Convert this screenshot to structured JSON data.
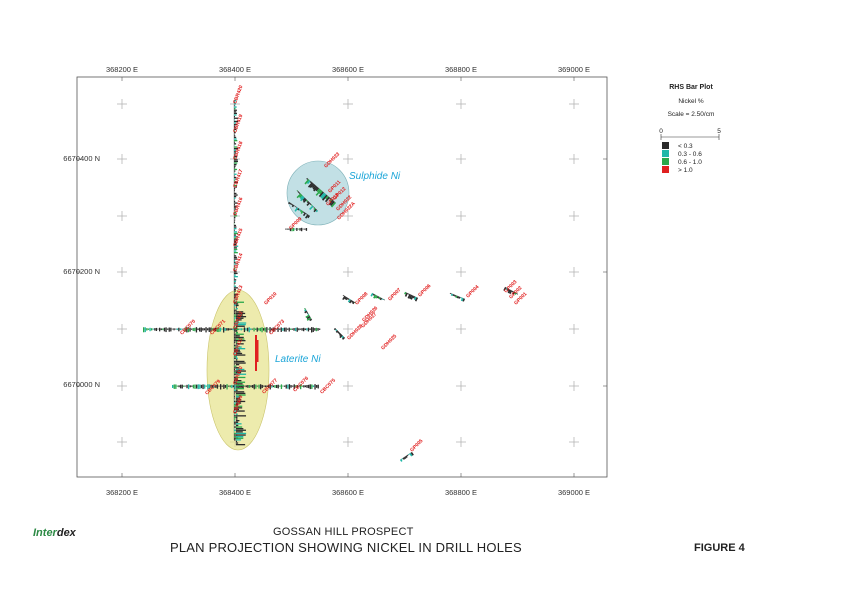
{
  "map": {
    "x_ticks": [
      "368200 E",
      "368400 E",
      "368600 E",
      "368800 E",
      "369000 E"
    ],
    "y_ticks": [
      "6670400 N",
      "6670200 N",
      "6670000 N"
    ],
    "zones": [
      {
        "name": "Sulphide Ni",
        "color": "#8fc7cf"
      },
      {
        "name": "Laterite Ni",
        "color": "#e6e28a"
      }
    ],
    "vertical_hole_labels": [
      "CBR420",
      "CBR419",
      "CBR418",
      "CBR417",
      "CBR416",
      "CBR415",
      "CBR414",
      "CBR413",
      "CBR412",
      "CBR411",
      "CBR410",
      "CBR409"
    ],
    "hole_labels": [
      "GDH023",
      "GP011",
      "GP012",
      "GP013",
      "GDH022",
      "GDH022A",
      "GP009",
      "GP010",
      "CBC070",
      "CBC071",
      "CBC073",
      "GP008",
      "GP007",
      "GP006",
      "GP004",
      "GP003",
      "GP002",
      "GP001",
      "GDH026",
      "GDH027",
      "GDH028",
      "GDH025",
      "CBC079",
      "CBC077",
      "CBC076",
      "CBC075",
      "GP005"
    ]
  },
  "legend": {
    "title": "RHS Bar Plot",
    "subtitle": "Nickel %",
    "scale": "Scale = 2.50/cm",
    "axis_min": "0",
    "axis_max": "5",
    "items": [
      {
        "label": "< 0.3",
        "color": "#2b2b2b"
      },
      {
        "label": "0.3 - 0.6",
        "color": "#1fb8a8"
      },
      {
        "label": "0.6 - 1.0",
        "color": "#2aa84a"
      },
      {
        "label": "> 1.0",
        "color": "#e02020"
      }
    ]
  },
  "footer": {
    "logo_inter": "Inter",
    "logo_dex": "dex",
    "subtitle": "GOSSAN HILL PROSPECT",
    "title": "PLAN PROJECTION SHOWING NICKEL IN DRILL HOLES",
    "figure": "FIGURE 4"
  }
}
